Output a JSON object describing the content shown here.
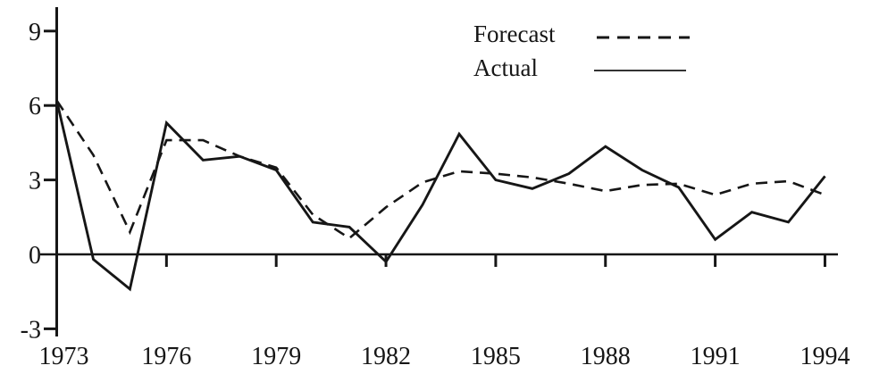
{
  "chart_data": {
    "type": "line",
    "title": "",
    "xlabel": "",
    "ylabel": "",
    "grid": false,
    "line_color": "#161616",
    "background_color": "#ffffff",
    "x": [
      1973,
      1974,
      1975,
      1976,
      1977,
      1978,
      1979,
      1980,
      1981,
      1982,
      1983,
      1984,
      1985,
      1986,
      1987,
      1988,
      1989,
      1990,
      1991,
      1992,
      1993,
      1994
    ],
    "series": [
      {
        "name": "Forecast",
        "style": "dashed",
        "values": [
          6.2,
          4.0,
          0.9,
          4.6,
          4.6,
          3.95,
          3.5,
          1.6,
          0.65,
          1.9,
          2.9,
          3.35,
          3.25,
          3.1,
          2.85,
          2.55,
          2.8,
          2.85,
          2.4,
          2.85,
          2.95,
          2.4
        ]
      },
      {
        "name": "Actual",
        "style": "solid",
        "values": [
          6.2,
          -0.2,
          -1.4,
          5.3,
          3.8,
          3.95,
          3.4,
          1.3,
          1.1,
          -0.3,
          2.0,
          4.85,
          3.0,
          2.65,
          3.25,
          4.35,
          3.4,
          2.7,
          0.6,
          1.7,
          1.3,
          3.15
        ]
      }
    ],
    "ylim": [
      -3,
      9
    ],
    "yticks": [
      9,
      6,
      3,
      0,
      -3
    ],
    "ytick_labels": [
      "9",
      "6",
      "3",
      "0",
      "-3"
    ],
    "xticks": [
      1973,
      1976,
      1979,
      1982,
      1985,
      1988,
      1991,
      1994
    ],
    "xtick_labels": [
      "1973",
      "1976",
      "1979",
      "1982",
      "1985",
      "1988",
      "1991",
      "1994"
    ],
    "legend_position": "top-right-inside"
  },
  "legend": {
    "forecast_label": "Forecast",
    "actual_label": "Actual"
  }
}
